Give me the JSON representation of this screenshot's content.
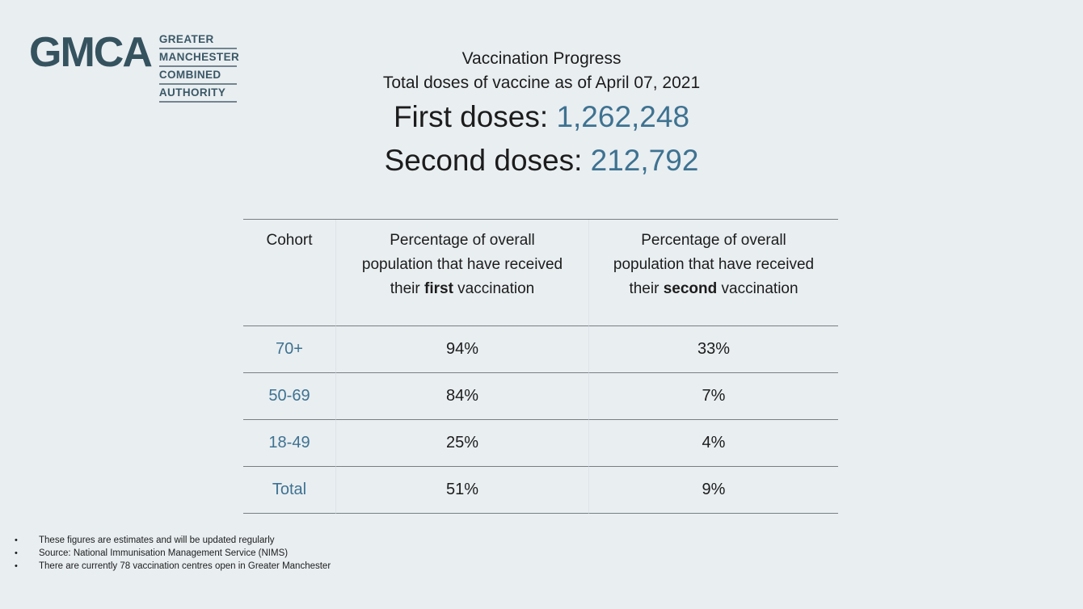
{
  "page": {
    "background_color": "#e9eef1",
    "accent_color": "#3e7291",
    "logo_color": "#35525f"
  },
  "logo": {
    "acronym": "GMCA",
    "words": [
      "GREATER",
      "MANCHESTER",
      "COMBINED",
      "AUTHORITY"
    ]
  },
  "header": {
    "title": "Vaccination Progress",
    "subtitle": "Total doses of vaccine as of April 07, 2021",
    "first_doses_label": "First doses: ",
    "first_doses_value": "1,262,248",
    "second_doses_label": "Second doses: ",
    "second_doses_value": "212,792"
  },
  "table": {
    "header": {
      "cohort": "Cohort",
      "col_first": {
        "prefix": "Percentage of overall population that have received their ",
        "emphasis": "first",
        "suffix": " vaccination"
      },
      "col_second": {
        "prefix": "Percentage of overall population that have received their ",
        "emphasis": "second",
        "suffix": " vaccination"
      }
    },
    "rows": [
      {
        "cohort": "70+",
        "first": "94%",
        "second": "33%"
      },
      {
        "cohort": "50-69",
        "first": "84%",
        "second": "7%"
      },
      {
        "cohort": "18-49",
        "first": "25%",
        "second": "4%"
      },
      {
        "cohort": "Total",
        "first": "51%",
        "second": "9%"
      }
    ]
  },
  "footnotes": {
    "bullet": "•",
    "items": [
      "These figures are estimates and will be updated regularly",
      "Source: National Immunisation Management Service (NIMS)",
      "There are currently 78 vaccination centres open in Greater Manchester"
    ]
  }
}
